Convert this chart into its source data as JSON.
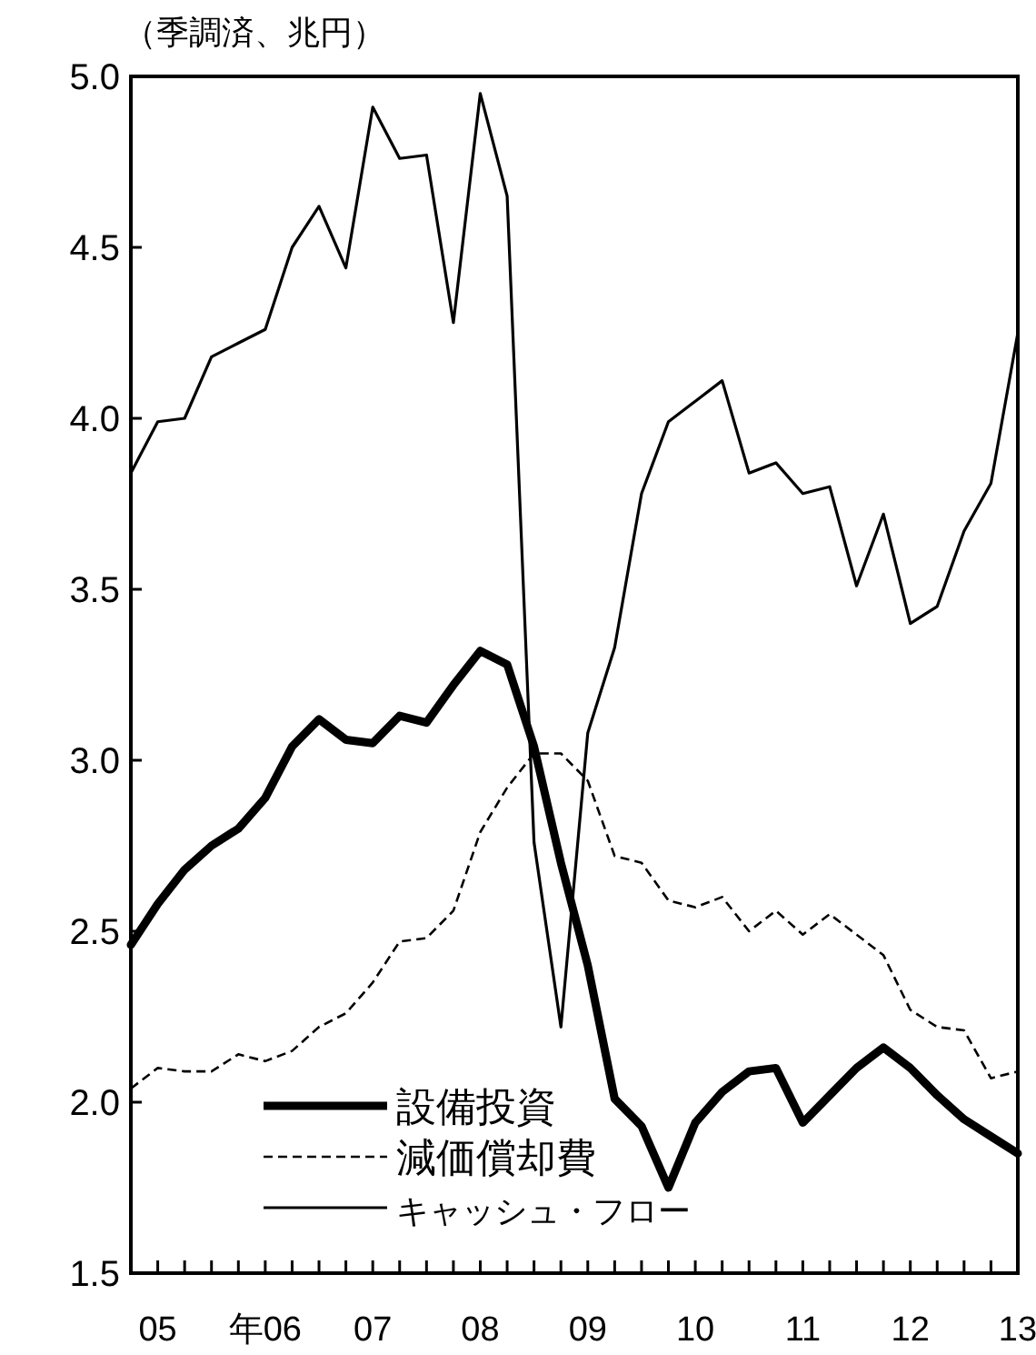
{
  "chart_data": {
    "type": "line",
    "ylabel": "（季調済、兆円）",
    "categories": [
      null,
      "05",
      null,
      null,
      null,
      "年06",
      null,
      null,
      null,
      "07",
      null,
      null,
      null,
      "08",
      null,
      null,
      null,
      "09",
      null,
      null,
      null,
      "10",
      null,
      null,
      null,
      "11",
      null,
      null,
      null,
      "12",
      null,
      null,
      null,
      "13"
    ],
    "series": [
      {
        "name": "設備投資",
        "color": "#000000",
        "line_style": "solid",
        "values": [
          2.46,
          2.58,
          2.68,
          2.75,
          2.8,
          2.89,
          3.04,
          3.12,
          3.06,
          3.05,
          3.13,
          3.11,
          3.22,
          3.32,
          3.28,
          3.04,
          2.7,
          2.4,
          2.01,
          1.93,
          1.75,
          1.94,
          2.03,
          2.09,
          2.1,
          1.94,
          2.02,
          2.1,
          2.16,
          2.1,
          2.02,
          1.95,
          1.9,
          1.85
        ]
      },
      {
        "name": "減価償却費",
        "color": "#000000",
        "line_style": "dashed",
        "values": [
          2.04,
          2.1,
          2.09,
          2.09,
          2.14,
          2.12,
          2.15,
          2.22,
          2.26,
          2.35,
          2.47,
          2.48,
          2.56,
          2.79,
          2.92,
          3.02,
          3.02,
          2.94,
          2.72,
          2.7,
          2.59,
          2.57,
          2.6,
          2.5,
          2.56,
          2.49,
          2.55,
          2.49,
          2.43,
          2.27,
          2.22,
          2.21,
          2.07,
          2.09
        ]
      },
      {
        "name": "キャッシュ・フロー",
        "color": "#000000",
        "line_style": "solid",
        "values": [
          3.84,
          3.99,
          4.0,
          4.18,
          4.22,
          4.26,
          4.5,
          4.62,
          4.44,
          4.91,
          4.76,
          4.77,
          4.28,
          4.95,
          4.65,
          2.76,
          2.22,
          3.08,
          3.33,
          3.78,
          3.99,
          4.05,
          4.11,
          3.84,
          3.87,
          3.78,
          3.8,
          3.51,
          3.72,
          3.4,
          3.45,
          3.67,
          3.81,
          4.25
        ]
      }
    ],
    "ylim": [
      1.5,
      5.0
    ],
    "yticks": [
      {
        "value": 1.5,
        "label": "1.5"
      },
      {
        "value": 2,
        "label": "2.0"
      },
      {
        "value": 2.5,
        "label": "2.5"
      },
      {
        "value": 3,
        "label": "3.0"
      },
      {
        "value": 3.5,
        "label": "3.5"
      },
      {
        "value": 4,
        "label": "4.0"
      },
      {
        "value": 4.5,
        "label": "4.5"
      },
      {
        "value": 5,
        "label": "5.0"
      }
    ],
    "legend": "bottom left",
    "grid": false
  }
}
